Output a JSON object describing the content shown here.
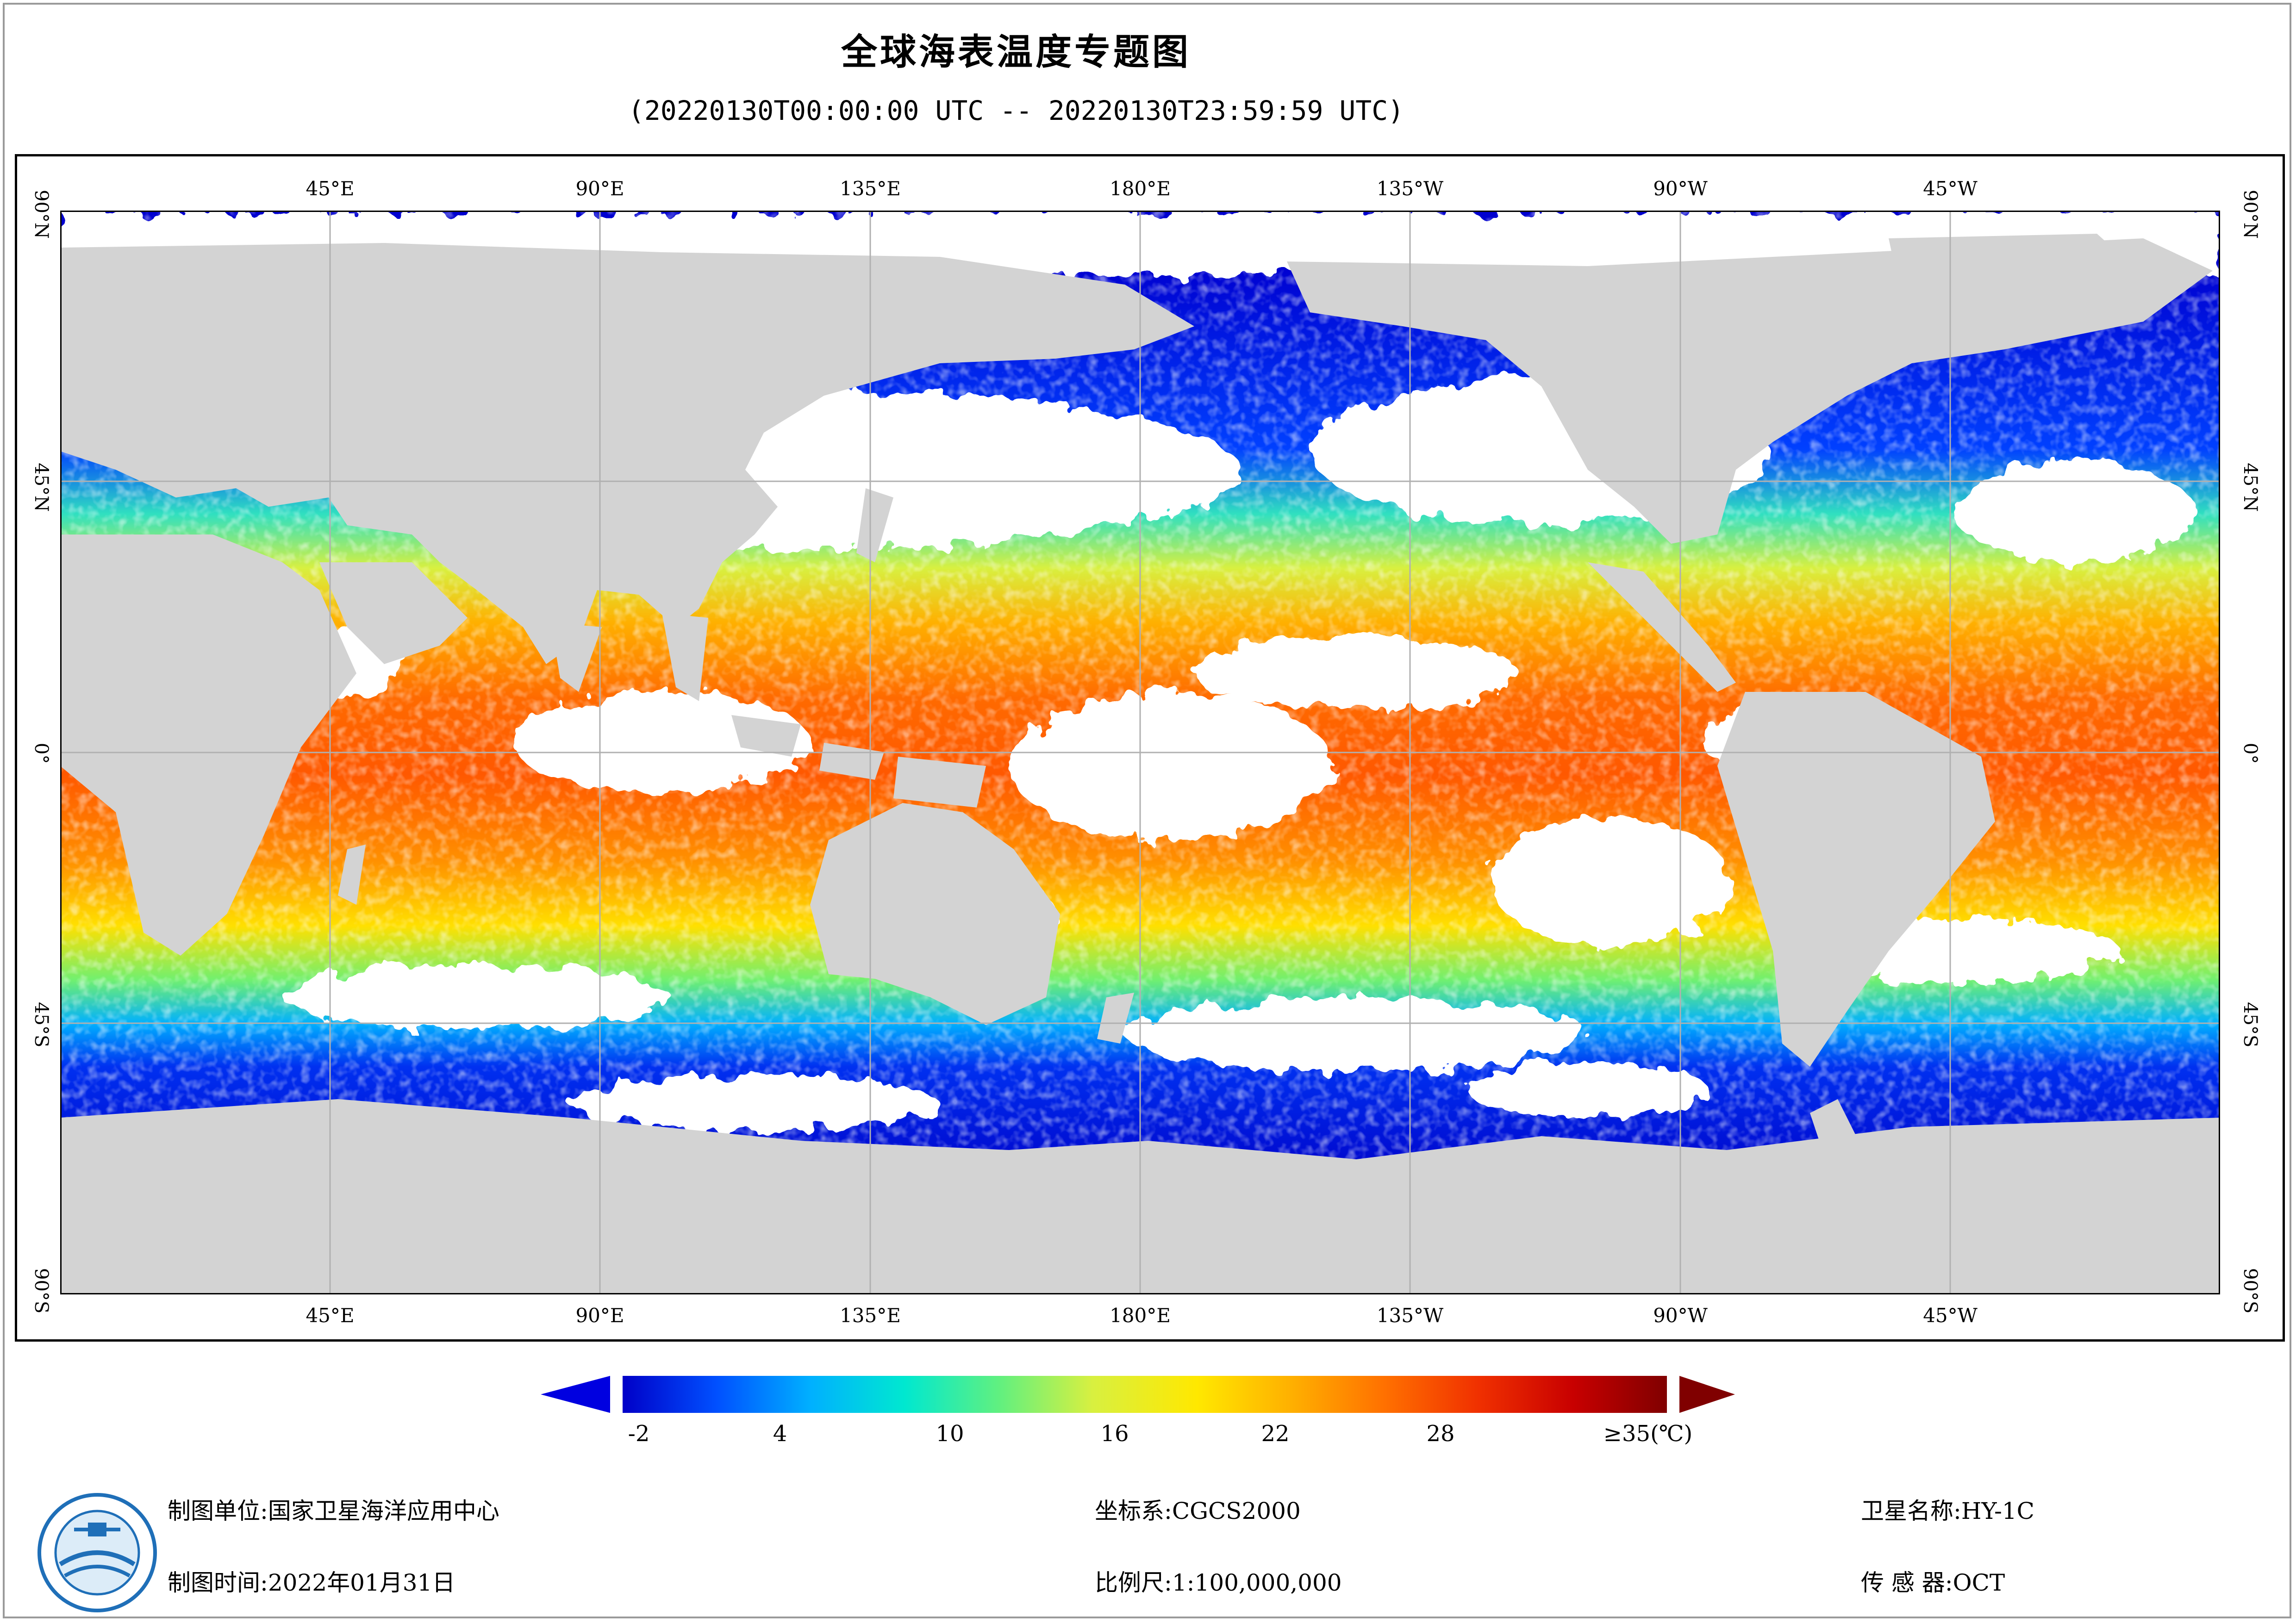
{
  "header": {
    "title": "全球海表温度专题图",
    "time_range": "(20220130T00:00:00 UTC -- 20220130T23:59:59 UTC)"
  },
  "map": {
    "top_lon_labels": [
      "45°E",
      "90°E",
      "135°E",
      "180°E",
      "135°W",
      "90°W",
      "45°W"
    ],
    "bottom_lon_labels": [
      "45°E",
      "90°E",
      "135°E",
      "180°E",
      "135°W",
      "90°W",
      "45°W"
    ],
    "left_lat_labels": [
      "90°N",
      "45°N",
      "0°",
      "45°S",
      "90°S"
    ],
    "right_lat_labels": [
      "90°N",
      "45°N",
      "0°",
      "45°S",
      "90°S"
    ],
    "colors": {
      "land": "#d3d3d3",
      "cloud_gap": "#ffffff",
      "grid": "#b0b0b0"
    }
  },
  "colorbar": {
    "tick_labels": [
      "-2",
      "4",
      "10",
      "16",
      "22",
      "28",
      "≥35(℃)"
    ],
    "colors": [
      "#0000c8",
      "#0050ff",
      "#00b0ff",
      "#00e8d0",
      "#60f080",
      "#d8f040",
      "#ffe800",
      "#ffb000",
      "#ff7000",
      "#f03000",
      "#c80000",
      "#800000"
    ]
  },
  "footer": {
    "org_label": "制图单位:国家卫星海洋应用中心",
    "date_label": "制图时间:2022年01月31日",
    "crs_label": "坐标系:CGCS2000",
    "scale_label": "比例尺:1:100,000,000",
    "satellite_label": "卫星名称:HY-1C",
    "sensor_label": "传 感 器:OCT"
  }
}
